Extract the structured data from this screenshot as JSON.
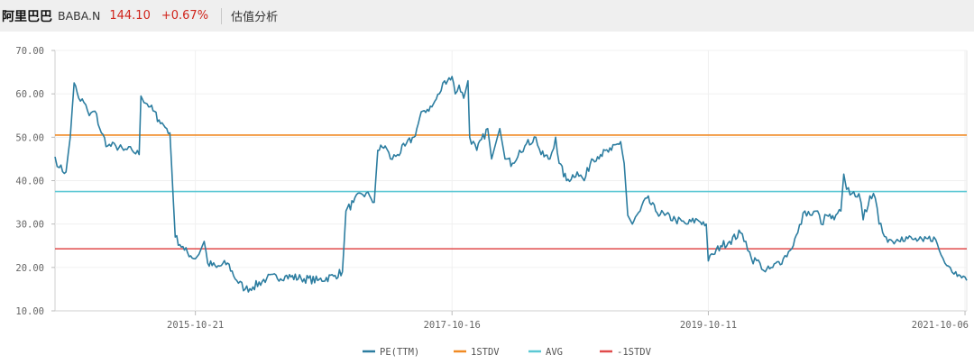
{
  "header": {
    "company": "阿里巴巴",
    "ticker": "BABA.N",
    "price": "144.10",
    "change": "+0.67%",
    "tab": "估值分析"
  },
  "chart_data": {
    "type": "line",
    "ylim": [
      10,
      70
    ],
    "yticks": [
      "70.00",
      "60.00",
      "50.00",
      "40.00",
      "30.00",
      "20.00",
      "10.00"
    ],
    "xticks": [
      "2015-10-21",
      "2017-10-16",
      "2019-10-11",
      "2021-10-06"
    ],
    "x_range": [
      "2014-09-19",
      "2021-10-11"
    ],
    "series": [
      {
        "name": "PE(TTM)",
        "color": "#2c7da0",
        "points": [
          [
            "2014-09-19",
            45.5
          ],
          [
            "2014-10-01",
            43
          ],
          [
            "2014-10-20",
            42
          ],
          [
            "2014-11-01",
            50
          ],
          [
            "2014-11-12",
            62.5
          ],
          [
            "2014-11-25",
            59
          ],
          [
            "2014-12-10",
            58
          ],
          [
            "2014-12-25",
            55
          ],
          [
            "2015-01-10",
            56
          ],
          [
            "2015-01-28",
            51
          ],
          [
            "2015-02-15",
            48
          ],
          [
            "2015-03-10",
            48
          ],
          [
            "2015-04-01",
            47
          ],
          [
            "2015-04-25",
            47
          ],
          [
            "2015-05-15",
            46
          ],
          [
            "2015-05-20",
            59.5
          ],
          [
            "2015-06-15",
            57
          ],
          [
            "2015-07-10",
            54
          ],
          [
            "2015-08-01",
            52
          ],
          [
            "2015-08-10",
            51
          ],
          [
            "2015-08-25",
            27
          ],
          [
            "2015-09-20",
            24
          ],
          [
            "2015-10-21",
            22
          ],
          [
            "2015-11-05",
            24
          ],
          [
            "2015-11-15",
            26
          ],
          [
            "2015-11-25",
            21
          ],
          [
            "2015-12-20",
            20
          ],
          [
            "2016-01-20",
            21
          ],
          [
            "2016-02-15",
            17
          ],
          [
            "2016-03-10",
            15
          ],
          [
            "2016-04-01",
            15.5
          ],
          [
            "2016-05-10",
            17.5
          ],
          [
            "2016-07-01",
            18
          ],
          [
            "2016-08-15",
            17.5
          ],
          [
            "2016-10-01",
            17
          ],
          [
            "2016-11-15",
            18
          ],
          [
            "2016-12-10",
            19
          ],
          [
            "2016-12-20",
            33
          ],
          [
            "2017-01-10",
            35
          ],
          [
            "2017-02-01",
            37
          ],
          [
            "2017-02-25",
            36.5
          ],
          [
            "2017-03-10",
            35
          ],
          [
            "2017-03-20",
            47
          ],
          [
            "2017-04-10",
            48
          ],
          [
            "2017-04-25",
            45
          ],
          [
            "2017-05-15",
            46
          ],
          [
            "2017-06-05",
            48
          ],
          [
            "2017-06-30",
            50
          ],
          [
            "2017-07-25",
            56
          ],
          [
            "2017-08-20",
            57
          ],
          [
            "2017-09-10",
            60
          ],
          [
            "2017-09-25",
            63
          ],
          [
            "2017-10-16",
            64
          ],
          [
            "2017-10-25",
            60
          ],
          [
            "2017-11-05",
            62
          ],
          [
            "2017-11-18",
            59
          ],
          [
            "2017-11-30",
            63
          ],
          [
            "2017-12-05",
            50
          ],
          [
            "2017-12-25",
            47
          ],
          [
            "2018-01-25",
            52
          ],
          [
            "2018-02-05",
            45
          ],
          [
            "2018-02-28",
            52
          ],
          [
            "2018-03-15",
            45
          ],
          [
            "2018-04-05",
            44
          ],
          [
            "2018-04-25",
            47
          ],
          [
            "2018-05-10",
            48
          ],
          [
            "2018-06-10",
            50
          ],
          [
            "2018-06-25",
            46
          ],
          [
            "2018-07-20",
            45
          ],
          [
            "2018-08-05",
            50
          ],
          [
            "2018-08-15",
            44
          ],
          [
            "2018-09-05",
            40
          ],
          [
            "2018-10-05",
            42
          ],
          [
            "2018-10-25",
            40
          ],
          [
            "2018-11-15",
            45
          ],
          [
            "2018-12-10",
            46
          ],
          [
            "2019-01-10",
            47
          ],
          [
            "2019-02-05",
            49
          ],
          [
            "2019-02-15",
            44
          ],
          [
            "2019-02-25",
            32
          ],
          [
            "2019-03-10",
            30
          ],
          [
            "2019-04-01",
            33
          ],
          [
            "2019-04-20",
            36
          ],
          [
            "2019-05-15",
            33
          ],
          [
            "2019-06-10",
            32
          ],
          [
            "2019-07-10",
            31
          ],
          [
            "2019-08-10",
            30
          ],
          [
            "2019-09-10",
            31
          ],
          [
            "2019-10-05",
            30
          ],
          [
            "2019-10-11",
            21.5
          ],
          [
            "2019-10-25",
            23
          ],
          [
            "2019-11-15",
            25
          ],
          [
            "2019-12-10",
            26
          ],
          [
            "2020-01-10",
            28
          ],
          [
            "2020-01-25",
            26
          ],
          [
            "2020-02-10",
            22
          ],
          [
            "2020-03-05",
            21
          ],
          [
            "2020-03-20",
            19
          ],
          [
            "2020-04-10",
            20
          ],
          [
            "2020-05-10",
            22
          ],
          [
            "2020-05-30",
            24
          ],
          [
            "2020-06-20",
            28
          ],
          [
            "2020-07-10",
            33
          ],
          [
            "2020-07-30",
            32
          ],
          [
            "2020-08-15",
            33
          ],
          [
            "2020-08-25",
            30
          ],
          [
            "2020-09-10",
            32
          ],
          [
            "2020-10-01",
            31
          ],
          [
            "2020-10-20",
            33
          ],
          [
            "2020-10-28",
            41.5
          ],
          [
            "2020-11-05",
            38
          ],
          [
            "2020-11-20",
            37
          ],
          [
            "2020-12-10",
            37
          ],
          [
            "2020-12-22",
            31
          ],
          [
            "2021-01-10",
            36.5
          ],
          [
            "2021-01-25",
            36
          ],
          [
            "2021-02-05",
            30
          ],
          [
            "2021-02-25",
            27
          ],
          [
            "2021-03-15",
            26
          ],
          [
            "2021-04-10",
            27
          ],
          [
            "2021-05-10",
            26.5
          ],
          [
            "2021-06-10",
            26
          ],
          [
            "2021-07-10",
            27
          ],
          [
            "2021-07-25",
            24
          ],
          [
            "2021-08-10",
            21
          ],
          [
            "2021-08-25",
            20
          ],
          [
            "2021-09-10",
            19
          ],
          [
            "2021-10-01",
            18
          ],
          [
            "2021-10-11",
            17
          ]
        ]
      },
      {
        "name": "1STDV",
        "color": "#f08a24",
        "value": 50.5
      },
      {
        "name": "AVG",
        "color": "#5bc8d4",
        "value": 37.5
      },
      {
        "name": "-1STDV",
        "color": "#e04b4b",
        "value": 24.3
      }
    ]
  }
}
